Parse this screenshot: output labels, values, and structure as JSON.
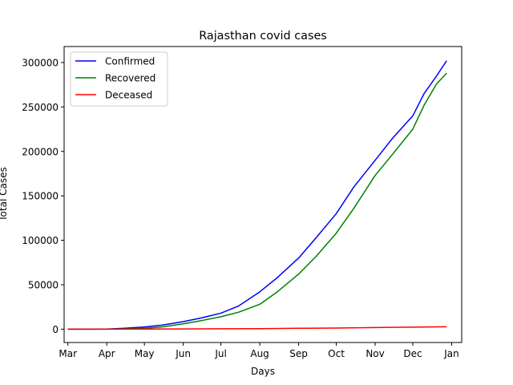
{
  "chart_data": {
    "type": "line",
    "title": "Rajasthan covid cases",
    "xlabel": "Days",
    "ylabel": "Total Cases",
    "x_ticks": [
      "Mar",
      "Apr",
      "May",
      "Jun",
      "Jul",
      "Aug",
      "Sep",
      "Oct",
      "Nov",
      "Dec",
      "Jan"
    ],
    "y_ticks": [
      "0",
      "50000",
      "100000",
      "150000",
      "200000",
      "250000",
      "300000"
    ],
    "xlim": [
      "2020-02-27",
      "2021-01-09"
    ],
    "ylim": [
      -15000,
      318000
    ],
    "grid": false,
    "legend_position": "top-left",
    "series": [
      {
        "name": "Confirmed",
        "color": "#0000ff",
        "points": [
          [
            "2020-03-01",
            0
          ],
          [
            "2020-03-15",
            10
          ],
          [
            "2020-04-01",
            100
          ],
          [
            "2020-04-15",
            1000
          ],
          [
            "2020-05-01",
            2500
          ],
          [
            "2020-05-15",
            4500
          ],
          [
            "2020-06-01",
            8500
          ],
          [
            "2020-06-15",
            12500
          ],
          [
            "2020-07-01",
            18000
          ],
          [
            "2020-07-15",
            26000
          ],
          [
            "2020-08-01",
            42000
          ],
          [
            "2020-08-15",
            58000
          ],
          [
            "2020-09-01",
            80000
          ],
          [
            "2020-09-15",
            103000
          ],
          [
            "2020-10-01",
            130000
          ],
          [
            "2020-10-15",
            160000
          ],
          [
            "2020-11-01",
            190000
          ],
          [
            "2020-11-15",
            215000
          ],
          [
            "2020-12-01",
            240000
          ],
          [
            "2020-12-10",
            265000
          ],
          [
            "2020-12-20",
            285000
          ],
          [
            "2020-12-28",
            302000
          ]
        ]
      },
      {
        "name": "Recovered",
        "color": "#008000",
        "points": [
          [
            "2020-03-01",
            0
          ],
          [
            "2020-03-15",
            5
          ],
          [
            "2020-04-01",
            50
          ],
          [
            "2020-04-15",
            300
          ],
          [
            "2020-05-01",
            1000
          ],
          [
            "2020-05-15",
            2500
          ],
          [
            "2020-06-01",
            6000
          ],
          [
            "2020-06-15",
            9500
          ],
          [
            "2020-07-01",
            14000
          ],
          [
            "2020-07-15",
            19000
          ],
          [
            "2020-08-01",
            28000
          ],
          [
            "2020-08-15",
            42000
          ],
          [
            "2020-09-01",
            62000
          ],
          [
            "2020-09-15",
            82000
          ],
          [
            "2020-10-01",
            108000
          ],
          [
            "2020-10-15",
            136000
          ],
          [
            "2020-11-01",
            173000
          ],
          [
            "2020-11-15",
            197000
          ],
          [
            "2020-12-01",
            225000
          ],
          [
            "2020-12-10",
            252000
          ],
          [
            "2020-12-20",
            276000
          ],
          [
            "2020-12-28",
            288000
          ]
        ]
      },
      {
        "name": "Deceased",
        "color": "#ff0000",
        "points": [
          [
            "2020-03-01",
            0
          ],
          [
            "2020-04-01",
            5
          ],
          [
            "2020-05-01",
            80
          ],
          [
            "2020-06-01",
            220
          ],
          [
            "2020-07-01",
            420
          ],
          [
            "2020-08-01",
            600
          ],
          [
            "2020-09-01",
            1000
          ],
          [
            "2020-10-01",
            1300
          ],
          [
            "2020-11-01",
            1850
          ],
          [
            "2020-12-01",
            2300
          ],
          [
            "2020-12-28",
            2700
          ]
        ]
      }
    ]
  }
}
